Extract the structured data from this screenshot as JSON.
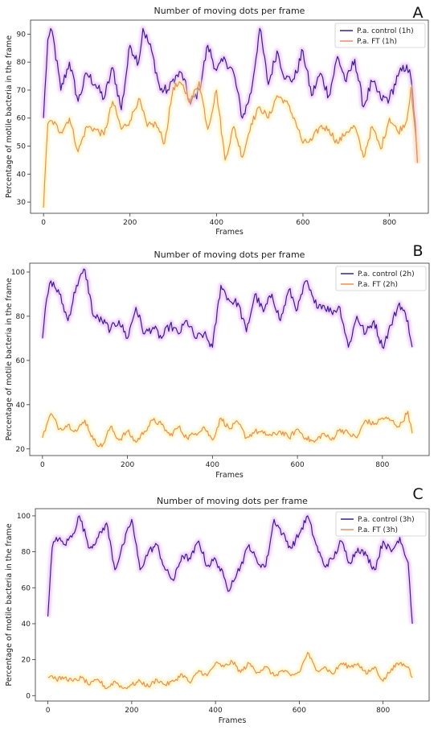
{
  "colors": {
    "control": "#3a1c9c",
    "ft": "#f08a5a",
    "control_glow": "#e9b0f5",
    "ft_glow": "#fff4a0"
  },
  "chart_data": [
    {
      "type": "line",
      "panel_label": "A",
      "title": "Number of moving dots per frame",
      "xlabel": "Frames",
      "ylabel": "Percentage of motile bacteria in the frame",
      "xlim": [
        -30,
        890
      ],
      "ylim": [
        26,
        95
      ],
      "xticks": [
        0,
        200,
        400,
        600,
        800
      ],
      "yticks": [
        30,
        40,
        50,
        60,
        70,
        80,
        90
      ],
      "legend": "top-right",
      "series": [
        {
          "name": "P.a. control (1h)",
          "x": [
            0,
            10,
            20,
            40,
            60,
            80,
            100,
            120,
            140,
            160,
            180,
            200,
            220,
            230,
            250,
            270,
            290,
            300,
            320,
            340,
            360,
            380,
            400,
            420,
            440,
            460,
            480,
            500,
            520,
            540,
            560,
            580,
            600,
            620,
            640,
            660,
            680,
            700,
            720,
            740,
            760,
            780,
            800,
            820,
            840,
            850,
            860,
            865
          ],
          "y": [
            60,
            88,
            91,
            70,
            80,
            66,
            76,
            72,
            67,
            78,
            63,
            86,
            80,
            92,
            84,
            70,
            70,
            74,
            76,
            65,
            70,
            86,
            77,
            81,
            76,
            60,
            69,
            92,
            72,
            84,
            74,
            74,
            84,
            68,
            76,
            68,
            82,
            73,
            81,
            64,
            73,
            67,
            67,
            75,
            79,
            74,
            58,
            44
          ]
        },
        {
          "name": "P.a. FT (1h)",
          "x": [
            0,
            10,
            20,
            40,
            60,
            80,
            100,
            120,
            140,
            160,
            180,
            200,
            220,
            240,
            260,
            280,
            300,
            320,
            340,
            360,
            380,
            400,
            420,
            440,
            460,
            480,
            500,
            520,
            540,
            560,
            580,
            600,
            620,
            640,
            660,
            680,
            700,
            720,
            740,
            760,
            780,
            800,
            820,
            840,
            850,
            860,
            865
          ],
          "y": [
            28,
            58,
            59,
            55,
            60,
            48,
            57,
            56,
            54,
            66,
            56,
            59,
            67,
            57,
            58,
            51,
            71,
            72,
            66,
            73,
            56,
            70,
            45,
            57,
            46,
            58,
            64,
            60,
            68,
            66,
            60,
            51,
            52,
            57,
            56,
            51,
            55,
            57,
            46,
            57,
            49,
            60,
            55,
            59,
            71,
            55,
            44
          ]
        }
      ]
    },
    {
      "type": "line",
      "panel_label": "B",
      "title": "Number of moving dots per frame",
      "xlabel": "Frames",
      "ylabel": "Percentage of motile bacteria in the frame",
      "xlim": [
        -30,
        910
      ],
      "ylim": [
        17,
        104
      ],
      "xticks": [
        0,
        200,
        400,
        600,
        800
      ],
      "yticks": [
        20,
        40,
        60,
        80,
        100
      ],
      "legend": "top-right",
      "series": [
        {
          "name": "P.a. control (2h)",
          "x": [
            0,
            10,
            20,
            40,
            60,
            80,
            100,
            120,
            140,
            160,
            180,
            200,
            220,
            240,
            260,
            280,
            300,
            320,
            340,
            360,
            380,
            400,
            420,
            440,
            460,
            480,
            500,
            520,
            540,
            560,
            580,
            600,
            620,
            640,
            660,
            680,
            700,
            720,
            740,
            760,
            780,
            800,
            820,
            840,
            860,
            870
          ],
          "y": [
            70,
            88,
            96,
            90,
            78,
            94,
            101,
            80,
            78,
            74,
            78,
            70,
            84,
            72,
            75,
            70,
            76,
            72,
            78,
            70,
            72,
            66,
            94,
            87,
            86,
            73,
            90,
            82,
            90,
            78,
            92,
            83,
            96,
            86,
            85,
            82,
            84,
            66,
            80,
            72,
            78,
            66,
            76,
            86,
            78,
            66
          ]
        },
        {
          "name": "P.a. FT (2h)",
          "x": [
            0,
            10,
            20,
            40,
            60,
            80,
            100,
            120,
            140,
            160,
            180,
            200,
            220,
            240,
            260,
            280,
            300,
            320,
            340,
            360,
            380,
            400,
            420,
            440,
            460,
            480,
            500,
            520,
            540,
            560,
            580,
            600,
            620,
            640,
            660,
            680,
            700,
            720,
            740,
            760,
            780,
            800,
            820,
            840,
            860,
            870
          ],
          "y": [
            25,
            31,
            36,
            29,
            31,
            28,
            33,
            24,
            21,
            30,
            24,
            28,
            23,
            28,
            33,
            31,
            26,
            30,
            25,
            27,
            30,
            24,
            34,
            29,
            32,
            25,
            28,
            27,
            26,
            28,
            25,
            29,
            25,
            23,
            27,
            24,
            29,
            27,
            25,
            33,
            31,
            34,
            33,
            30,
            37,
            27
          ]
        }
      ]
    },
    {
      "type": "line",
      "panel_label": "C",
      "title": "Number of moving dots per frame",
      "xlabel": "Frames",
      "ylabel": "Percentage of motile bacteria in the frame",
      "xlim": [
        -30,
        910
      ],
      "ylim": [
        -3,
        104
      ],
      "xticks": [
        0,
        200,
        400,
        600,
        800
      ],
      "yticks": [
        0,
        20,
        40,
        60,
        80,
        100
      ],
      "legend": "top-right",
      "series": [
        {
          "name": "P.a. control (3h)",
          "x": [
            0,
            10,
            20,
            40,
            60,
            75,
            100,
            120,
            140,
            160,
            180,
            200,
            220,
            240,
            260,
            280,
            300,
            320,
            340,
            360,
            380,
            400,
            420,
            430,
            440,
            460,
            480,
            500,
            520,
            540,
            560,
            580,
            600,
            620,
            640,
            660,
            680,
            700,
            720,
            740,
            760,
            780,
            800,
            820,
            840,
            860,
            870
          ],
          "y": [
            44,
            82,
            88,
            84,
            90,
            100,
            82,
            88,
            96,
            70,
            84,
            98,
            70,
            80,
            84,
            70,
            64,
            78,
            76,
            86,
            72,
            76,
            66,
            58,
            64,
            72,
            84,
            74,
            72,
            98,
            90,
            82,
            90,
            100,
            84,
            72,
            76,
            86,
            74,
            82,
            78,
            70,
            86,
            80,
            88,
            74,
            40
          ]
        },
        {
          "name": "P.a. FT (3h)",
          "x": [
            0,
            10,
            20,
            40,
            60,
            80,
            100,
            120,
            140,
            160,
            180,
            200,
            220,
            240,
            260,
            280,
            300,
            320,
            340,
            360,
            380,
            400,
            420,
            440,
            460,
            480,
            500,
            520,
            540,
            560,
            580,
            600,
            620,
            640,
            660,
            680,
            700,
            720,
            740,
            760,
            780,
            800,
            820,
            840,
            860,
            870
          ],
          "y": [
            10,
            11,
            9,
            10,
            8,
            10,
            6,
            9,
            4,
            8,
            4,
            6,
            8,
            5,
            9,
            6,
            8,
            12,
            7,
            14,
            11,
            18,
            16,
            19,
            13,
            18,
            13,
            16,
            11,
            14,
            11,
            13,
            24,
            14,
            16,
            12,
            18,
            16,
            18,
            12,
            16,
            8,
            15,
            18,
            16,
            10
          ]
        }
      ]
    }
  ]
}
